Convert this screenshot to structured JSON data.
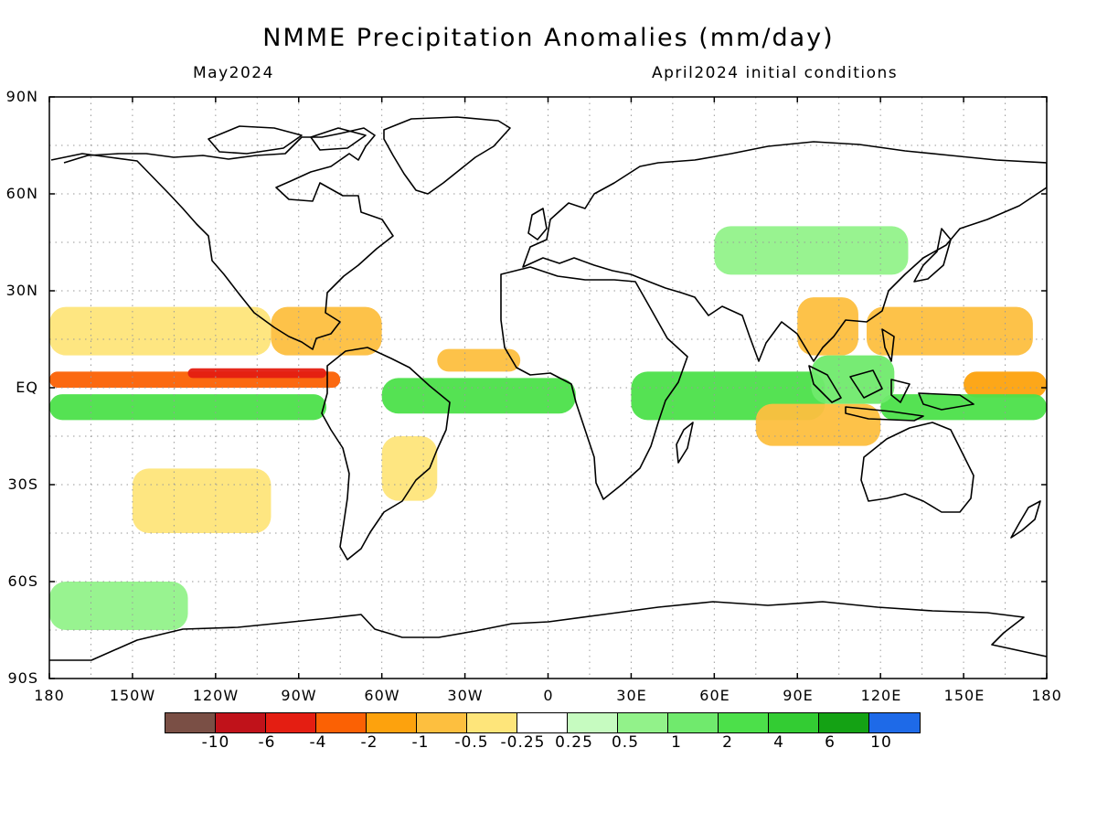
{
  "title": "NMME Precipitation Anomalies (mm/day)",
  "subtitle_left": "May2024",
  "subtitle_right": "April2024 initial conditions",
  "lat_labels": [
    "90N",
    "60N",
    "30N",
    "EQ",
    "30S",
    "60S",
    "90S"
  ],
  "lon_labels": [
    "180",
    "150W",
    "120W",
    "90W",
    "60W",
    "30W",
    "0",
    "30E",
    "60E",
    "90E",
    "120E",
    "150E",
    "180"
  ],
  "colorbar": {
    "colors": [
      "#7a4f45",
      "#c0121a",
      "#e41e12",
      "#fb6104",
      "#fda20d",
      "#fdbf3f",
      "#fee57a",
      "#ffffff",
      "#c6fbc0",
      "#92f28a",
      "#70ea6d",
      "#4ce04a",
      "#33cc33",
      "#14a214",
      "#1e6ae8"
    ],
    "tick_labels": [
      "-10",
      "-6",
      "-4",
      "-2",
      "-1",
      "-0.5",
      "-0.25",
      "0.25",
      "0.5",
      "1",
      "2",
      "4",
      "6",
      "10"
    ]
  },
  "chart_data": {
    "type": "heatmap",
    "title": "NMME Precipitation Anomalies (mm/day)",
    "period": "May2024",
    "initial_conditions": "April2024 initial conditions",
    "units": "mm/day",
    "xlim": [
      -180,
      180
    ],
    "ylim": [
      -90,
      90
    ],
    "levels": [
      -10,
      -6,
      -4,
      -2,
      -1,
      -0.5,
      -0.25,
      0.25,
      0.5,
      1,
      2,
      4,
      6,
      10
    ],
    "regions": [
      {
        "lon": [
          -180,
          -75
        ],
        "lat": [
          0,
          5
        ],
        "anomaly": -4
      },
      {
        "lon": [
          -130,
          -80
        ],
        "lat": [
          3,
          6
        ],
        "anomaly": -6
      },
      {
        "lon": [
          -180,
          -80
        ],
        "lat": [
          -10,
          -2
        ],
        "anomaly": 2
      },
      {
        "lon": [
          -180,
          -100
        ],
        "lat": [
          10,
          25
        ],
        "anomaly": -0.5
      },
      {
        "lon": [
          -100,
          -60
        ],
        "lat": [
          10,
          25
        ],
        "anomaly": -1
      },
      {
        "lon": [
          -60,
          10
        ],
        "lat": [
          -8,
          3
        ],
        "anomaly": 2
      },
      {
        "lon": [
          -40,
          -10
        ],
        "lat": [
          5,
          12
        ],
        "anomaly": -1
      },
      {
        "lon": [
          -60,
          -40
        ],
        "lat": [
          -35,
          -15
        ],
        "anomaly": -0.5
      },
      {
        "lon": [
          -150,
          -100
        ],
        "lat": [
          -45,
          -25
        ],
        "anomaly": -0.5
      },
      {
        "lon": [
          30,
          100
        ],
        "lat": [
          -10,
          5
        ],
        "anomaly": 2
      },
      {
        "lon": [
          75,
          120
        ],
        "lat": [
          -18,
          -5
        ],
        "anomaly": -1
      },
      {
        "lon": [
          90,
          112
        ],
        "lat": [
          10,
          28
        ],
        "anomaly": -1
      },
      {
        "lon": [
          115,
          175
        ],
        "lat": [
          10,
          25
        ],
        "anomaly": -1
      },
      {
        "lon": [
          150,
          180
        ],
        "lat": [
          -3,
          5
        ],
        "anomaly": -2
      },
      {
        "lon": [
          120,
          180
        ],
        "lat": [
          -10,
          -2
        ],
        "anomaly": 2
      },
      {
        "lon": [
          95,
          125
        ],
        "lat": [
          -5,
          10
        ],
        "anomaly": 1
      },
      {
        "lon": [
          60,
          130
        ],
        "lat": [
          35,
          50
        ],
        "anomaly": 0.5
      },
      {
        "lon": [
          -180,
          -130
        ],
        "lat": [
          -75,
          -60
        ],
        "anomaly": 0.5
      }
    ]
  }
}
